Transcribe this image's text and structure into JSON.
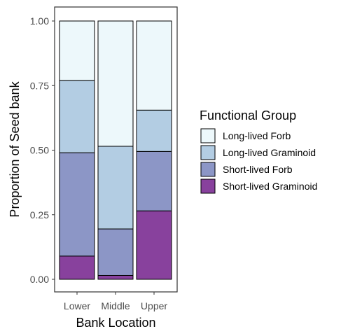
{
  "chart_data": {
    "type": "bar",
    "stacked": true,
    "categories": [
      "Lower",
      "Middle",
      "Upper"
    ],
    "series": [
      {
        "name": "Short-lived Graminoid",
        "values": [
          0.09,
          0.015,
          0.265
        ],
        "color": "#88419d"
      },
      {
        "name": "Short-lived Forb",
        "values": [
          0.4,
          0.18,
          0.23
        ],
        "color": "#8c96c6"
      },
      {
        "name": "Long-lived Graminoid",
        "values": [
          0.28,
          0.32,
          0.16
        ],
        "color": "#b3cde3"
      },
      {
        "name": "Long-lived Forb",
        "values": [
          0.23,
          0.485,
          0.345
        ],
        "color": "#edf8fb"
      }
    ],
    "legend_order": [
      "Long-lived Forb",
      "Long-lived Graminoid",
      "Short-lived Forb",
      "Short-lived Graminoid"
    ],
    "legend_title": "Functional Group",
    "legend_position": "right",
    "xlabel": "Bank Location",
    "ylabel": "Proportion of Seed bank",
    "ylim": [
      0,
      1.0
    ],
    "yticks": [
      "0.00",
      "0.25",
      "0.50",
      "0.75",
      "1.00"
    ],
    "ytick_values": [
      0,
      0.25,
      0.5,
      0.75,
      1.0
    ],
    "grid": false
  }
}
